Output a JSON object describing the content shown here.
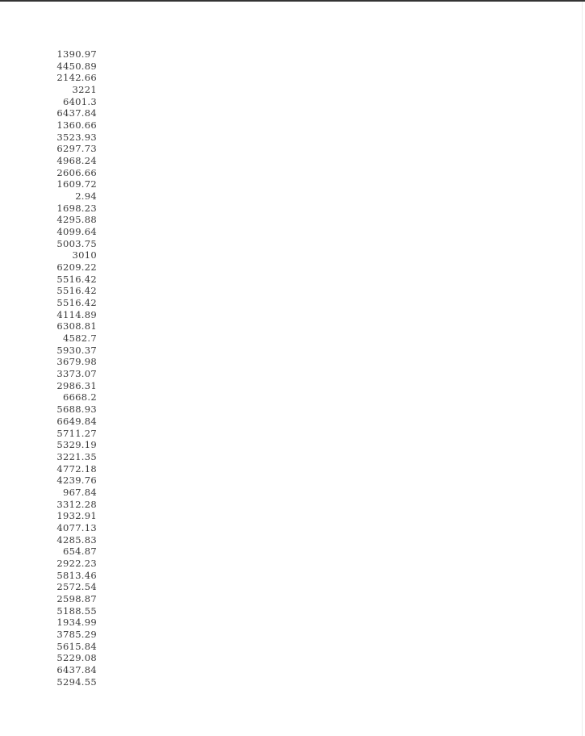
{
  "values": [
    "1390.97",
    "4450.89",
    "2142.66",
    "3221",
    "6401.3",
    "6437.84",
    "1360.66",
    "3523.93",
    "6297.73",
    "4968.24",
    "2606.66",
    "1609.72",
    "2.94",
    "1698.23",
    "4295.88",
    "4099.64",
    "5003.75",
    "3010",
    "6209.22",
    "5516.42",
    "5516.42",
    "5516.42",
    "4114.89",
    "6308.81",
    "4582.7",
    "5930.37",
    "3679.98",
    "3373.07",
    "2986.31",
    "6668.2",
    "5688.93",
    "6649.84",
    "5711.27",
    "5329.19",
    "3221.35",
    "4772.18",
    "4239.76",
    "967.84",
    "3312.28",
    "1932.91",
    "4077.13",
    "4285.83",
    "654.87",
    "2922.23",
    "5813.46",
    "2572.54",
    "2598.87",
    "5188.55",
    "1934.99",
    "3785.29",
    "5615.84",
    "5229.08",
    "6437.84",
    "5294.55"
  ]
}
